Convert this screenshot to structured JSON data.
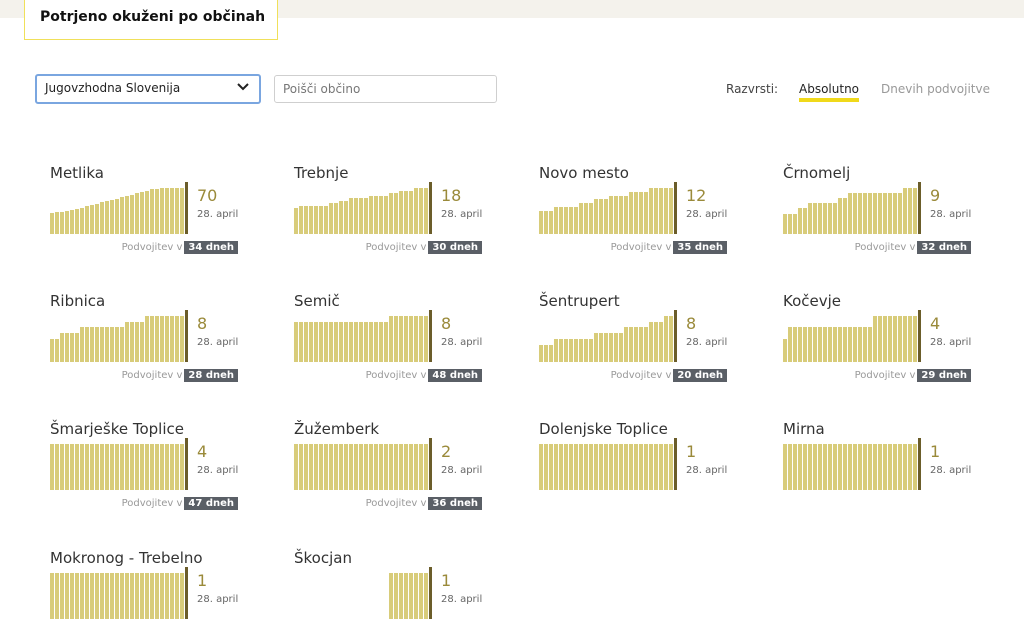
{
  "header": {
    "title": "Potrjeno okuženi po občinah"
  },
  "filters": {
    "region_selected": "Jugovzhodna Slovenija",
    "search_placeholder": "Poišči občino",
    "sort_label": "Razvrsti:",
    "sort_absolute": "Absolutno",
    "sort_doubling": "Dnevih podvojitve"
  },
  "colors": {
    "bar": "#d8cc7a",
    "last_bar": "#6b5d2a",
    "value": "#9a8a3a",
    "badge": "#5a5f66",
    "accent": "#f0d91a"
  },
  "icons": {
    "dropdown": "chevron-down-icon"
  },
  "municipalities": [
    {
      "name": "Metlika",
      "value": "70",
      "date": "28. april",
      "doubling_label": "Podvojitev v",
      "doubling": "34 dneh",
      "series": [
        32,
        33,
        34,
        35,
        36,
        38,
        40,
        42,
        44,
        46,
        48,
        50,
        52,
        54,
        56,
        58,
        60,
        62,
        64,
        66,
        68,
        69,
        70,
        70,
        70,
        70,
        70
      ]
    },
    {
      "name": "Trebnje",
      "value": "18",
      "date": "28. april",
      "doubling_label": "Podvojitev v",
      "doubling": "30 dneh",
      "series": [
        10,
        11,
        11,
        11,
        11,
        11,
        11,
        12,
        12,
        13,
        13,
        14,
        14,
        14,
        14,
        15,
        15,
        15,
        15,
        16,
        16,
        17,
        17,
        17,
        18,
        18,
        18
      ]
    },
    {
      "name": "Novo mesto",
      "value": "12",
      "date": "28. april",
      "doubling_label": "Podvojitev v",
      "doubling": "35 dneh",
      "series": [
        6,
        6,
        6,
        7,
        7,
        7,
        7,
        7,
        8,
        8,
        8,
        9,
        9,
        9,
        10,
        10,
        10,
        10,
        11,
        11,
        11,
        11,
        12,
        12,
        12,
        12,
        12
      ]
    },
    {
      "name": "Črnomelj",
      "value": "9",
      "date": "28. april",
      "doubling_label": "Podvojitev v",
      "doubling": "32 dneh",
      "series": [
        4,
        4,
        4,
        5,
        5,
        6,
        6,
        6,
        6,
        6,
        6,
        7,
        7,
        8,
        8,
        8,
        8,
        8,
        8,
        8,
        8,
        8,
        8,
        8,
        9,
        9,
        9
      ]
    },
    {
      "name": "Ribnica",
      "value": "8",
      "date": "28. april",
      "doubling_label": "Podvojitev v",
      "doubling": "28 dneh",
      "series": [
        4,
        4,
        5,
        5,
        5,
        5,
        6,
        6,
        6,
        6,
        6,
        6,
        6,
        6,
        6,
        7,
        7,
        7,
        7,
        8,
        8,
        8,
        8,
        8,
        8,
        8,
        8
      ]
    },
    {
      "name": "Semič",
      "value": "8",
      "date": "28. april",
      "doubling_label": "Podvojitev v",
      "doubling": "48 dneh",
      "series": [
        7,
        7,
        7,
        7,
        7,
        7,
        7,
        7,
        7,
        7,
        7,
        7,
        7,
        7,
        7,
        7,
        7,
        7,
        7,
        8,
        8,
        8,
        8,
        8,
        8,
        8,
        8
      ]
    },
    {
      "name": "Šentrupert",
      "value": "8",
      "date": "28. april",
      "doubling_label": "Podvojitev v",
      "doubling": "20 dneh",
      "series": [
        3,
        3,
        3,
        4,
        4,
        4,
        4,
        4,
        4,
        4,
        4,
        5,
        5,
        5,
        5,
        5,
        5,
        6,
        6,
        6,
        6,
        6,
        7,
        7,
        7,
        8,
        8
      ]
    },
    {
      "name": "Kočevje",
      "value": "4",
      "date": "28. april",
      "doubling_label": "Podvojitev v",
      "doubling": "29 dneh",
      "series": [
        2,
        3,
        3,
        3,
        3,
        3,
        3,
        3,
        3,
        3,
        3,
        3,
        3,
        3,
        3,
        3,
        3,
        3,
        4,
        4,
        4,
        4,
        4,
        4,
        4,
        4,
        4
      ]
    },
    {
      "name": "Šmarješke Toplice",
      "value": "4",
      "date": "28. april",
      "doubling_label": "Podvojitev v",
      "doubling": "47 dneh",
      "series": [
        4,
        4,
        4,
        4,
        4,
        4,
        4,
        4,
        4,
        4,
        4,
        4,
        4,
        4,
        4,
        4,
        4,
        4,
        4,
        4,
        4,
        4,
        4,
        4,
        4,
        4,
        4
      ]
    },
    {
      "name": "Žužemberk",
      "value": "2",
      "date": "28. april",
      "doubling_label": "Podvojitev v",
      "doubling": "36 dneh",
      "series": [
        2,
        2,
        2,
        2,
        2,
        2,
        2,
        2,
        2,
        2,
        2,
        2,
        2,
        2,
        2,
        2,
        2,
        2,
        2,
        2,
        2,
        2,
        2,
        2,
        2,
        2,
        2
      ]
    },
    {
      "name": "Dolenjske Toplice",
      "value": "1",
      "date": "28. april",
      "series": [
        1,
        1,
        1,
        1,
        1,
        1,
        1,
        1,
        1,
        1,
        1,
        1,
        1,
        1,
        1,
        1,
        1,
        1,
        1,
        1,
        1,
        1,
        1,
        1,
        1,
        1,
        1
      ]
    },
    {
      "name": "Mirna",
      "value": "1",
      "date": "28. april",
      "series": [
        1,
        1,
        1,
        1,
        1,
        1,
        1,
        1,
        1,
        1,
        1,
        1,
        1,
        1,
        1,
        1,
        1,
        1,
        1,
        1,
        1,
        1,
        1,
        1,
        1,
        1,
        1
      ]
    },
    {
      "name": "Mokronog - Trebelno",
      "value": "1",
      "date": "28. april",
      "series": [
        1,
        1,
        1,
        1,
        1,
        1,
        1,
        1,
        1,
        1,
        1,
        1,
        1,
        1,
        1,
        1,
        1,
        1,
        1,
        1,
        1,
        1,
        1,
        1,
        1,
        1,
        1
      ]
    },
    {
      "name": "Škocjan",
      "value": "1",
      "date": "28. april",
      "series": [
        0,
        0,
        0,
        0,
        0,
        0,
        0,
        0,
        0,
        0,
        0,
        0,
        0,
        0,
        0,
        0,
        0,
        0,
        0,
        1,
        1,
        1,
        1,
        1,
        1,
        1,
        1
      ]
    }
  ]
}
